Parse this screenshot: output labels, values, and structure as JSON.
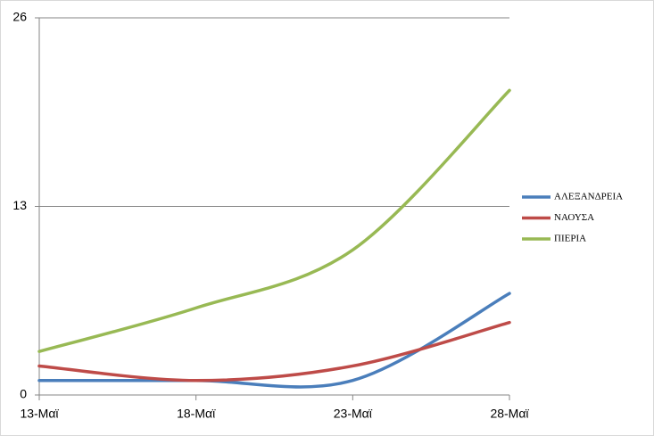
{
  "chart_data": {
    "type": "line",
    "categories": [
      "13-Μαϊ",
      "18-Μαϊ",
      "23-Μαϊ",
      "28-Μαϊ"
    ],
    "series": [
      {
        "name": "ΑΛΕΞΑΝΔΡΕΙΑ",
        "color": "#4a7ebb",
        "values": [
          1,
          1,
          1,
          7
        ]
      },
      {
        "name": "ΝΑΟΥΣΑ",
        "color": "#be4b48",
        "values": [
          2,
          1,
          2,
          5
        ]
      },
      {
        "name": "ΠΙΕΡΙΑ",
        "color": "#98b954",
        "values": [
          3,
          6,
          10,
          21
        ]
      }
    ],
    "ylim": [
      0,
      26
    ],
    "yticks": [
      0,
      13,
      26
    ],
    "grid": true,
    "smooth": true,
    "legend": "right"
  }
}
